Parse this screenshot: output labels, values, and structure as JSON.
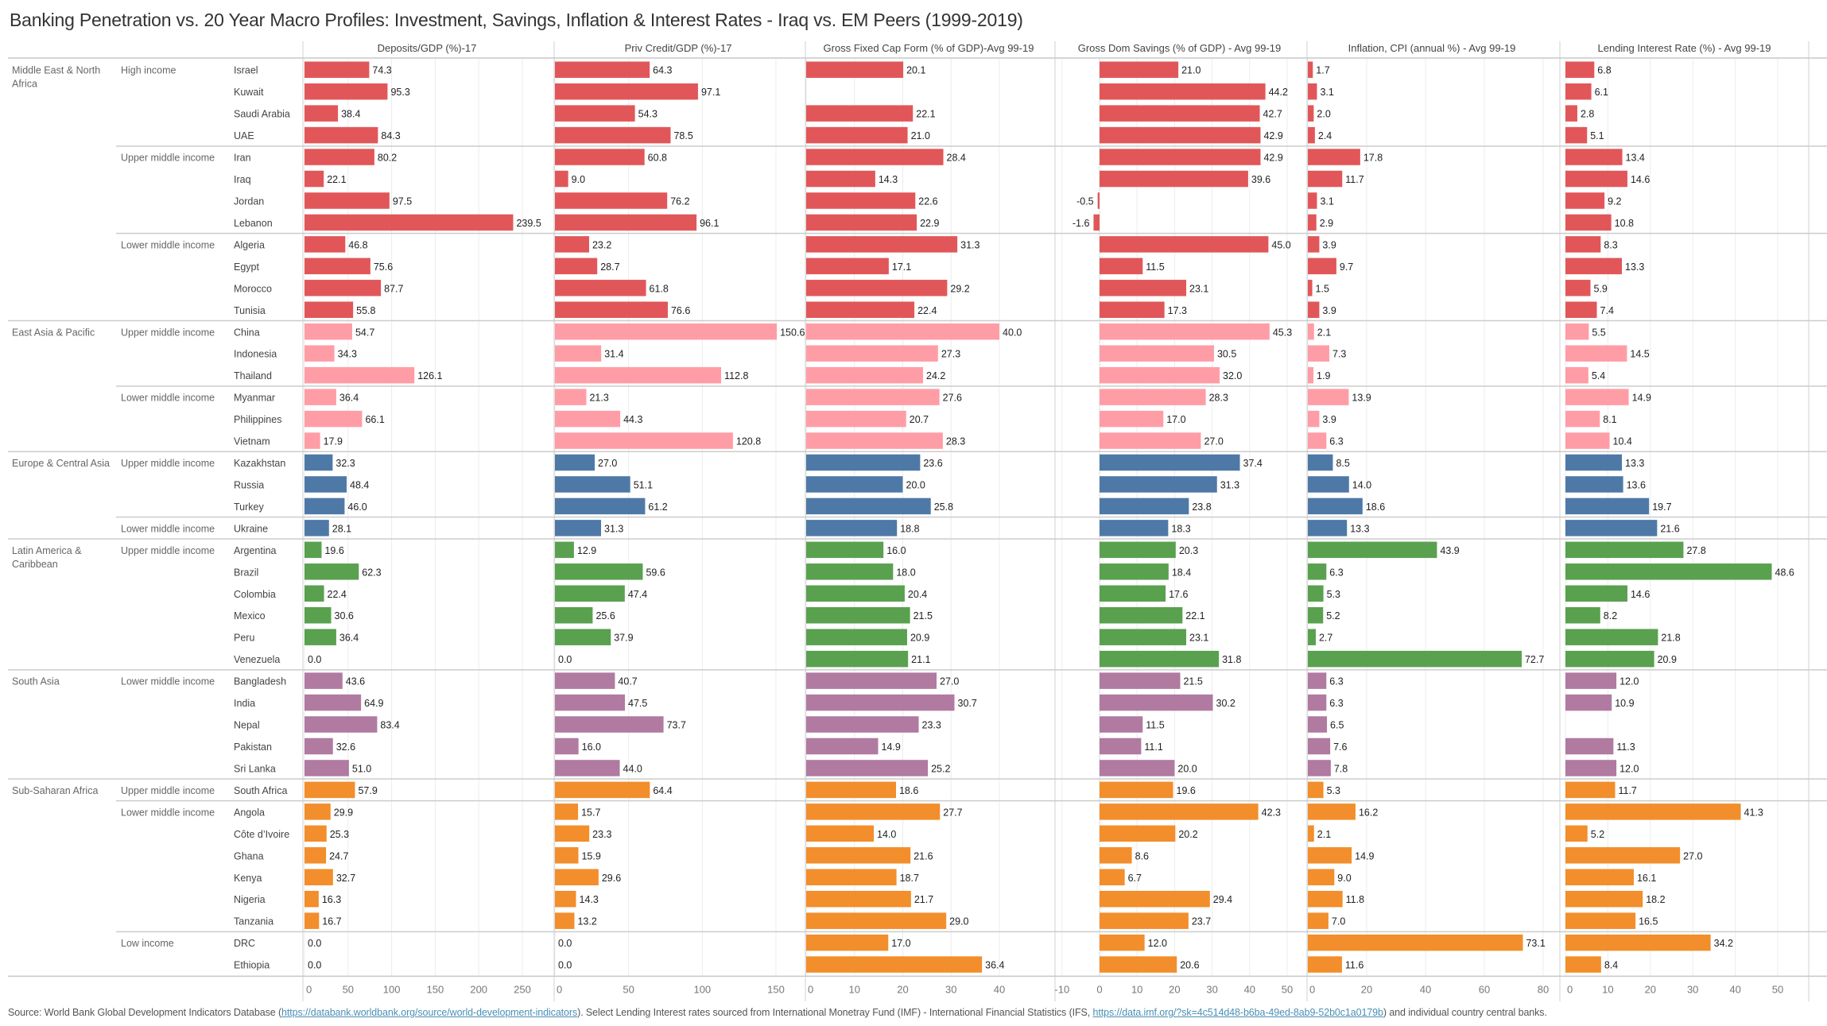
{
  "title": "Banking Penetration vs. 20 Year Macro Profiles: Investment, Savings, Inflation & Interest Rates - Iraq vs. EM Peers (1999-2019)",
  "footer": {
    "prefix": "Source: World Bank Global Development Indicators Database (",
    "link1": "https://databank.worldbank.org/source/world-development-indicators",
    "middle": "). Select Lending Interest rates sourced from International Monetray Fund (IMF) - International Financial Statistics (IFS, ",
    "link2": "https://data.imf.org/?sk=4c514d48-b6ba-49ed-8ab9-52b0c1a0179b",
    "suffix": ") and individual country central banks."
  },
  "region_colors": {
    "Middle East & North Africa": "#e15759",
    "East Asia & Pacific": "#ff9da7",
    "Europe & Central Asia": "#4e79a7",
    "Latin America & Caribbean": "#59a14f",
    "South Asia": "#b07aa1",
    "Sub-Saharan Africa": "#f28e2b"
  },
  "chart_data": {
    "type": "bar",
    "orientation": "horizontal",
    "title": "Banking Penetration vs. 20 Year Macro Profiles: Investment, Savings, Inflation & Interest Rates - Iraq vs. EM Peers (1999-2019)",
    "row_dimensions": [
      "Region",
      "Income group",
      "Country"
    ],
    "measures": [
      {
        "key": "deposits",
        "label": "Deposits/GDP (%)-17",
        "axis_range": [
          0,
          265
        ],
        "ticks": [
          0,
          50,
          100,
          150,
          200,
          250
        ]
      },
      {
        "key": "priv_credit",
        "label": "Priv Credit/GDP (%)-17",
        "axis_range": [
          0,
          167
        ],
        "ticks": [
          0,
          50,
          100,
          150
        ]
      },
      {
        "key": "gfcf",
        "label": "Gross Fixed Cap Form (% of GDP)-Avg 99-19",
        "axis_range": [
          0,
          51
        ],
        "ticks": [
          0,
          10,
          20,
          30,
          40
        ]
      },
      {
        "key": "gds",
        "label": "Gross Dom Savings (% of GDP) - Avg 99-19",
        "axis_range": [
          -12,
          54
        ],
        "ticks": [
          -10,
          0,
          10,
          20,
          30,
          40,
          50
        ]
      },
      {
        "key": "inflation",
        "label": "Inflation, CPI (annual %) - Avg 99-19",
        "axis_range": [
          0,
          85
        ],
        "ticks": [
          0,
          20,
          40,
          60,
          80
        ]
      },
      {
        "key": "lending",
        "label": "Lending Interest Rate (%) - Avg 99-19",
        "axis_range": [
          0,
          58
        ],
        "ticks": [
          0,
          10,
          20,
          30,
          40,
          50
        ]
      }
    ],
    "regions": [
      {
        "name": "Middle East & North Africa",
        "groups": [
          {
            "income": "High income",
            "countries": [
              {
                "name": "Israel",
                "values": [
                  74.3,
                  64.3,
                  20.1,
                  21.0,
                  1.7,
                  6.8
                ]
              },
              {
                "name": "Kuwait",
                "values": [
                  95.3,
                  97.1,
                  null,
                  44.2,
                  3.1,
                  6.1
                ]
              },
              {
                "name": "Saudi Arabia",
                "values": [
                  38.4,
                  54.3,
                  22.1,
                  42.7,
                  2.0,
                  2.8
                ]
              },
              {
                "name": "UAE",
                "values": [
                  84.3,
                  78.5,
                  21.0,
                  42.9,
                  2.4,
                  5.1
                ]
              }
            ]
          },
          {
            "income": "Upper middle income",
            "countries": [
              {
                "name": "Iran",
                "values": [
                  80.2,
                  60.8,
                  28.4,
                  42.9,
                  17.8,
                  13.4
                ]
              },
              {
                "name": "Iraq",
                "values": [
                  22.1,
                  9.0,
                  14.3,
                  39.6,
                  11.7,
                  14.6
                ]
              },
              {
                "name": "Jordan",
                "values": [
                  97.5,
                  76.2,
                  22.6,
                  -0.5,
                  3.1,
                  9.2
                ]
              },
              {
                "name": "Lebanon",
                "values": [
                  239.5,
                  96.1,
                  22.9,
                  -1.6,
                  2.9,
                  10.8
                ]
              }
            ]
          },
          {
            "income": "Lower middle income",
            "countries": [
              {
                "name": "Algeria",
                "values": [
                  46.8,
                  23.2,
                  31.3,
                  45.0,
                  3.9,
                  8.3
                ]
              },
              {
                "name": "Egypt",
                "values": [
                  75.6,
                  28.7,
                  17.1,
                  11.5,
                  9.7,
                  13.3
                ]
              },
              {
                "name": "Morocco",
                "values": [
                  87.7,
                  61.8,
                  29.2,
                  23.1,
                  1.5,
                  5.9
                ]
              },
              {
                "name": "Tunisia",
                "values": [
                  55.8,
                  76.6,
                  22.4,
                  17.3,
                  3.9,
                  7.4
                ]
              }
            ]
          }
        ]
      },
      {
        "name": "East Asia & Pacific",
        "groups": [
          {
            "income": "Upper middle income",
            "countries": [
              {
                "name": "China",
                "values": [
                  54.7,
                  150.6,
                  40.0,
                  45.3,
                  2.1,
                  5.5
                ]
              },
              {
                "name": "Indonesia",
                "values": [
                  34.3,
                  31.4,
                  27.3,
                  30.5,
                  7.3,
                  14.5
                ]
              },
              {
                "name": "Thailand",
                "values": [
                  126.1,
                  112.8,
                  24.2,
                  32.0,
                  1.9,
                  5.4
                ]
              }
            ]
          },
          {
            "income": "Lower middle income",
            "countries": [
              {
                "name": "Myanmar",
                "values": [
                  36.4,
                  21.3,
                  27.6,
                  28.3,
                  13.9,
                  14.9
                ]
              },
              {
                "name": "Philippines",
                "values": [
                  66.1,
                  44.3,
                  20.7,
                  17.0,
                  3.9,
                  8.1
                ]
              },
              {
                "name": "Vietnam",
                "values": [
                  17.9,
                  120.8,
                  28.3,
                  27.0,
                  6.3,
                  10.4
                ]
              }
            ]
          }
        ]
      },
      {
        "name": "Europe & Central Asia",
        "groups": [
          {
            "income": "Upper middle income",
            "countries": [
              {
                "name": "Kazakhstan",
                "values": [
                  32.3,
                  27.0,
                  23.6,
                  37.4,
                  8.5,
                  13.3
                ]
              },
              {
                "name": "Russia",
                "values": [
                  48.4,
                  51.1,
                  20.0,
                  31.3,
                  14.0,
                  13.6
                ]
              },
              {
                "name": "Turkey",
                "values": [
                  46.0,
                  61.2,
                  25.8,
                  23.8,
                  18.6,
                  19.7
                ]
              }
            ]
          },
          {
            "income": "Lower middle income",
            "countries": [
              {
                "name": "Ukraine",
                "values": [
                  28.1,
                  31.3,
                  18.8,
                  18.3,
                  13.3,
                  21.6
                ]
              }
            ]
          }
        ]
      },
      {
        "name": "Latin America & Caribbean",
        "groups": [
          {
            "income": "Upper middle income",
            "countries": [
              {
                "name": "Argentina",
                "values": [
                  19.6,
                  12.9,
                  16.0,
                  20.3,
                  43.9,
                  27.8
                ]
              },
              {
                "name": "Brazil",
                "values": [
                  62.3,
                  59.6,
                  18.0,
                  18.4,
                  6.3,
                  48.6
                ]
              },
              {
                "name": "Colombia",
                "values": [
                  22.4,
                  47.4,
                  20.4,
                  17.6,
                  5.3,
                  14.6
                ]
              },
              {
                "name": "Mexico",
                "values": [
                  30.6,
                  25.6,
                  21.5,
                  22.1,
                  5.2,
                  8.2
                ]
              },
              {
                "name": "Peru",
                "values": [
                  36.4,
                  37.9,
                  20.9,
                  23.1,
                  2.7,
                  21.8
                ]
              },
              {
                "name": "Venezuela",
                "values": [
                  0.0,
                  0.0,
                  21.1,
                  31.8,
                  72.7,
                  20.9
                ]
              }
            ]
          }
        ]
      },
      {
        "name": "South Asia",
        "groups": [
          {
            "income": "Lower middle income",
            "countries": [
              {
                "name": "Bangladesh",
                "values": [
                  43.6,
                  40.7,
                  27.0,
                  21.5,
                  6.3,
                  12.0
                ]
              },
              {
                "name": "India",
                "values": [
                  64.9,
                  47.5,
                  30.7,
                  30.2,
                  6.3,
                  10.9
                ]
              },
              {
                "name": "Nepal",
                "values": [
                  83.4,
                  73.7,
                  23.3,
                  11.5,
                  6.5,
                  null
                ]
              },
              {
                "name": "Pakistan",
                "values": [
                  32.6,
                  16.0,
                  14.9,
                  11.1,
                  7.6,
                  11.3
                ]
              },
              {
                "name": "Sri Lanka",
                "values": [
                  51.0,
                  44.0,
                  25.2,
                  20.0,
                  7.8,
                  12.0
                ]
              }
            ]
          }
        ]
      },
      {
        "name": "Sub-Saharan Africa",
        "groups": [
          {
            "income": "Upper middle income",
            "countries": [
              {
                "name": "South Africa",
                "values": [
                  57.9,
                  64.4,
                  18.6,
                  19.6,
                  5.3,
                  11.7
                ]
              }
            ]
          },
          {
            "income": "Lower middle income",
            "countries": [
              {
                "name": "Angola",
                "values": [
                  29.9,
                  15.7,
                  27.7,
                  42.3,
                  16.2,
                  41.3
                ]
              },
              {
                "name": "Côte d’Ivoire",
                "values": [
                  25.3,
                  23.3,
                  14.0,
                  20.2,
                  2.1,
                  5.2
                ]
              },
              {
                "name": "Ghana",
                "values": [
                  24.7,
                  15.9,
                  21.6,
                  8.6,
                  14.9,
                  27.0
                ]
              },
              {
                "name": "Kenya",
                "values": [
                  32.7,
                  29.6,
                  18.7,
                  6.7,
                  9.0,
                  16.1
                ]
              },
              {
                "name": "Nigeria",
                "values": [
                  16.3,
                  14.3,
                  21.7,
                  29.4,
                  11.8,
                  18.2
                ]
              },
              {
                "name": "Tanzania",
                "values": [
                  16.7,
                  13.2,
                  29.0,
                  23.7,
                  7.0,
                  16.5
                ]
              }
            ]
          },
          {
            "income": "Low income",
            "countries": [
              {
                "name": "DRC",
                "values": [
                  0.0,
                  0.0,
                  17.0,
                  12.0,
                  73.1,
                  34.2
                ]
              },
              {
                "name": "Ethiopia",
                "values": [
                  0.0,
                  0.0,
                  36.4,
                  20.6,
                  11.6,
                  8.4
                ]
              }
            ]
          }
        ]
      }
    ]
  }
}
